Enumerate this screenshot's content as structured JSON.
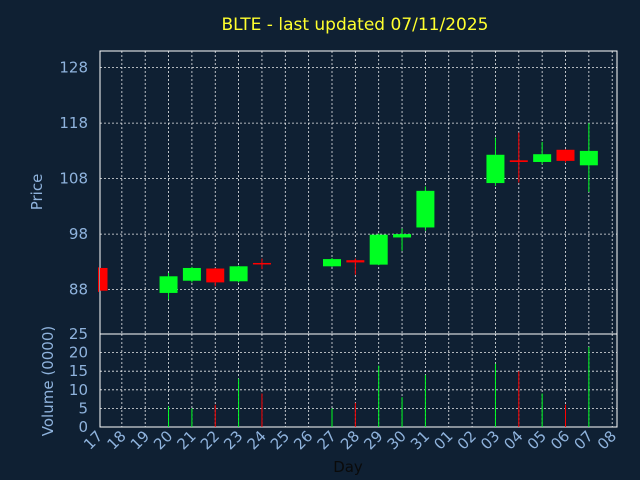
{
  "chart_data": {
    "type": "candlestick",
    "title": "BLTE - last updated 07/11/2025",
    "xlabel": "Day",
    "price_panel": {
      "ylabel": "Price",
      "ylim": [
        80,
        131
      ],
      "yticks": [
        88,
        98,
        108,
        118,
        128
      ]
    },
    "volume_panel": {
      "ylabel": "Volume (0000)",
      "ylim": [
        0,
        25
      ],
      "yticks": [
        0,
        5,
        10,
        15,
        20,
        25
      ]
    },
    "x_tick_labels": [
      "17",
      "18",
      "19",
      "20",
      "21",
      "22",
      "23",
      "24",
      "25",
      "26",
      "27",
      "28",
      "29",
      "30",
      "31",
      "01",
      "02",
      "03",
      "04",
      "05",
      "06",
      "07",
      "08"
    ],
    "candles": [
      {
        "day": "17",
        "open": 91.9,
        "high": 92.0,
        "low": 87.6,
        "close": 87.8,
        "volume": 0
      },
      {
        "day": "20",
        "open": 87.4,
        "high": 91.0,
        "low": 86.2,
        "close": 90.4,
        "volume": 5.5
      },
      {
        "day": "21",
        "open": 89.6,
        "high": 92.1,
        "low": 89.3,
        "close": 91.9,
        "volume": 5.0
      },
      {
        "day": "22",
        "open": 91.8,
        "high": 91.9,
        "low": 88.6,
        "close": 89.3,
        "volume": 6.0
      },
      {
        "day": "23",
        "open": 89.5,
        "high": 92.3,
        "low": 89.3,
        "close": 92.2,
        "volume": 13.0
      },
      {
        "day": "24",
        "open": 92.8,
        "high": 93.6,
        "low": 91.7,
        "close": 92.6,
        "volume": 9.0
      },
      {
        "day": "27",
        "open": 92.2,
        "high": 93.7,
        "low": 92.1,
        "close": 93.5,
        "volume": 5.0
      },
      {
        "day": "28",
        "open": 93.3,
        "high": 93.6,
        "low": 90.7,
        "close": 92.9,
        "volume": 6.5
      },
      {
        "day": "29",
        "open": 92.5,
        "high": 98.1,
        "low": 92.4,
        "close": 97.9,
        "volume": 16.5
      },
      {
        "day": "30",
        "open": 97.4,
        "high": 99.0,
        "low": 95.0,
        "close": 98.0,
        "volume": 8.0
      },
      {
        "day": "31",
        "open": 99.2,
        "high": 106.6,
        "low": 98.6,
        "close": 105.8,
        "volume": 14.0
      },
      {
        "day": "03",
        "open": 107.2,
        "high": 115.4,
        "low": 106.7,
        "close": 112.3,
        "volume": 17.0
      },
      {
        "day": "04",
        "open": 111.3,
        "high": 116.3,
        "low": 107.3,
        "close": 111.0,
        "volume": 15.0
      },
      {
        "day": "05",
        "open": 111.0,
        "high": 114.6,
        "low": 110.6,
        "close": 112.4,
        "volume": 9.0
      },
      {
        "day": "06",
        "open": 113.2,
        "high": 113.3,
        "low": 110.9,
        "close": 111.2,
        "volume": 6.0
      },
      {
        "day": "07",
        "open": 110.4,
        "high": 118.0,
        "low": 105.6,
        "close": 113.0,
        "volume": 21.5
      }
    ],
    "colors": {
      "up": "#00ff22",
      "down": "#ff0000",
      "background": "#0f2033",
      "grid": "#ffffff",
      "axis_text": "#8fb3dd",
      "title": "#ffff2e"
    },
    "grid": true
  }
}
